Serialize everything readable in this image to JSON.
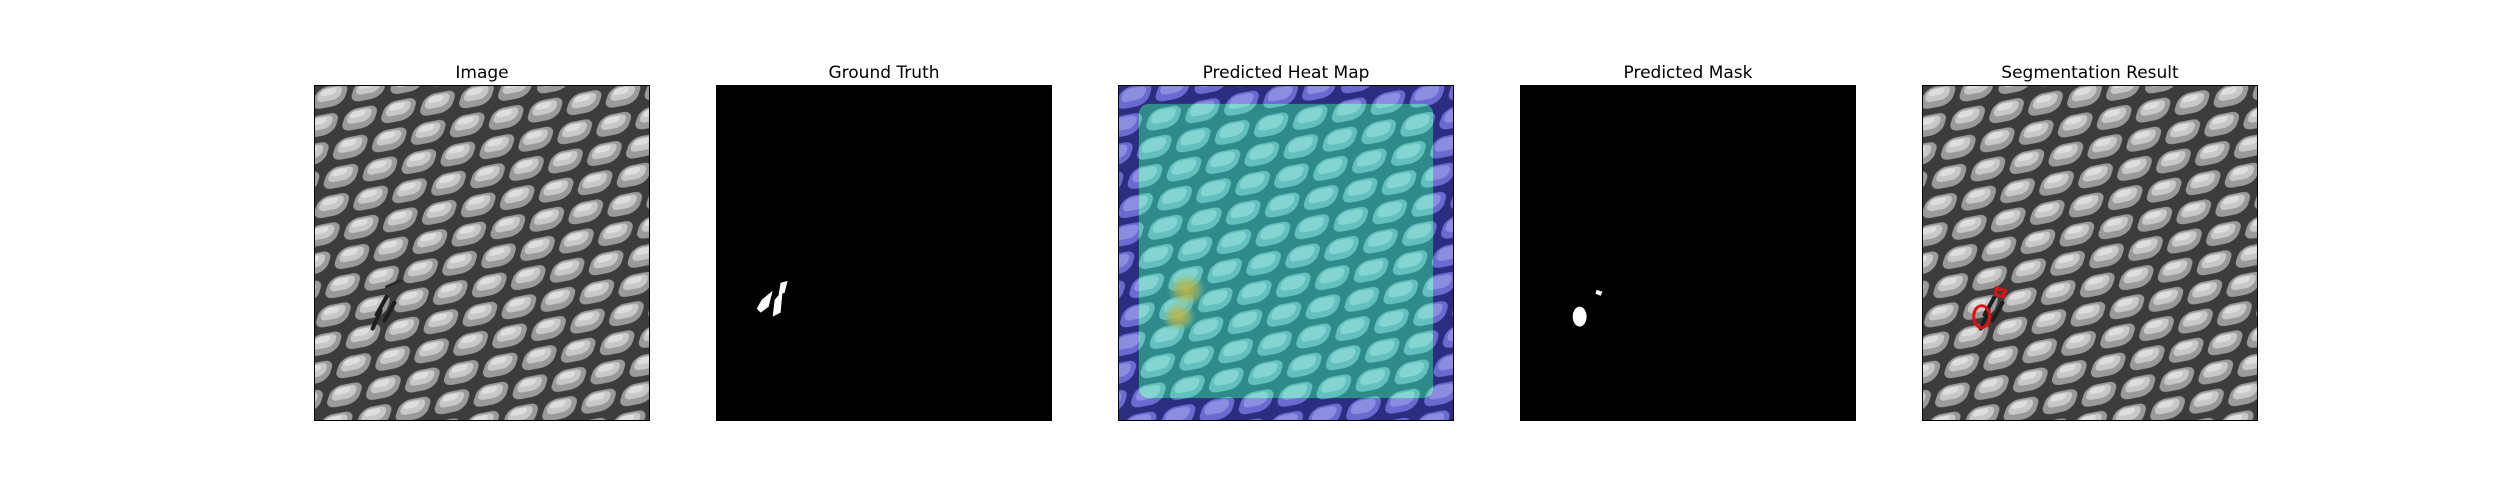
{
  "panels": [
    {
      "title": "Image"
    },
    {
      "title": "Ground Truth"
    },
    {
      "title": "Predicted Heat Map"
    },
    {
      "title": "Predicted Mask"
    },
    {
      "title": "Segmentation Result"
    }
  ],
  "colors": {
    "background": "#ffffff",
    "mask_background": "#000000",
    "mask_foreground": "#ffffff",
    "heatmap_low": "#3f3fb4",
    "heatmap_mid": "#57c8c2",
    "heatmap_high": "#c8b846",
    "segmentation_contour": "#e01010"
  }
}
